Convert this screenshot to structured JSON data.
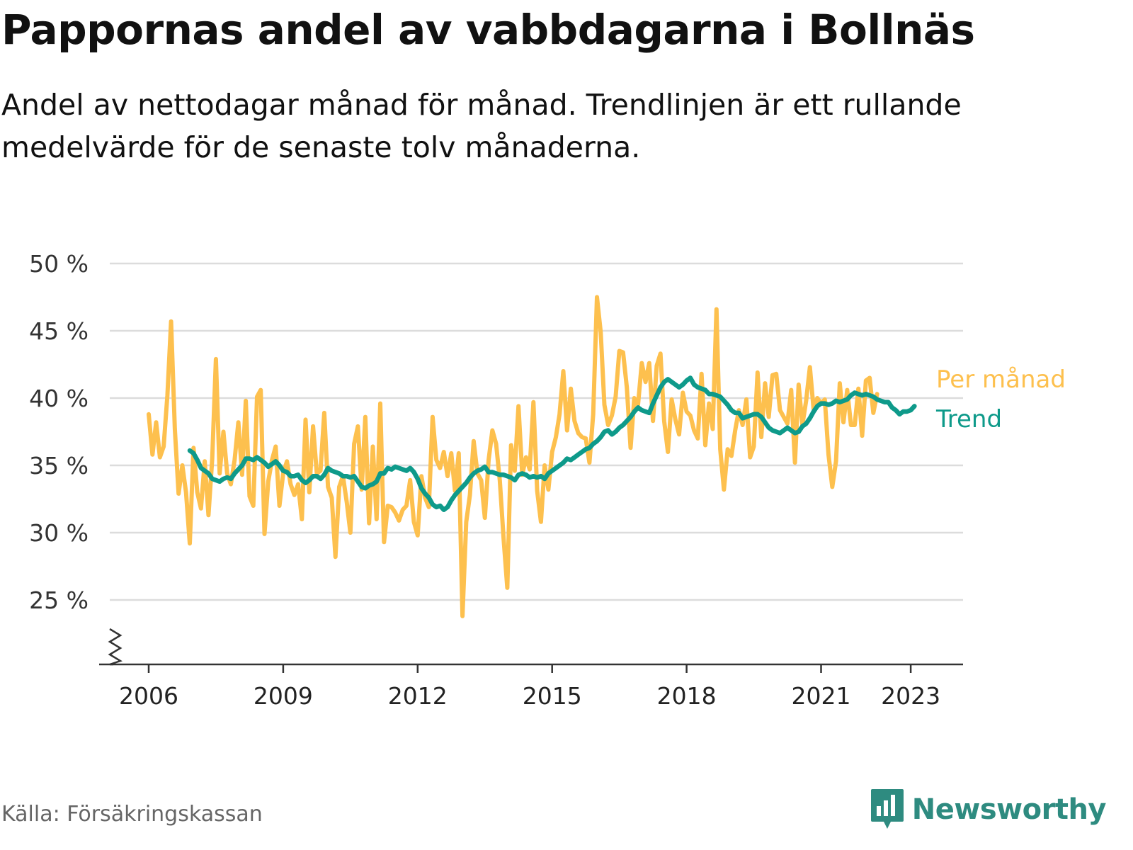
{
  "title": "Pappornas andel av vabbdagarna i Bollnäs",
  "subtitle": "Andel av nettodagar månad för månad. Trendlinjen är ett rullande medelvärde för de senaste tolv månaderna.",
  "source": "Källa: Försäkringskassan",
  "brand": {
    "name": "Newsworthy",
    "icon": "newsworthy-logo-icon",
    "color": "#2e8b80"
  },
  "chart_data": {
    "type": "line",
    "ylim": [
      20,
      50
    ],
    "xlim": [
      2005.1,
      2024.2
    ],
    "y_ticks": [
      {
        "value": 25,
        "label": "25 %"
      },
      {
        "value": 30,
        "label": "30 %"
      },
      {
        "value": 35,
        "label": "35 %"
      },
      {
        "value": 40,
        "label": "40 %"
      },
      {
        "value": 45,
        "label": "45 %"
      },
      {
        "value": 50,
        "label": "50 %"
      }
    ],
    "x_ticks": [
      {
        "value": 2006,
        "label": "2006"
      },
      {
        "value": 2009,
        "label": "2009"
      },
      {
        "value": 2012,
        "label": "2012"
      },
      {
        "value": 2015,
        "label": "2015"
      },
      {
        "value": 2018,
        "label": "2018"
      },
      {
        "value": 2021,
        "label": "2021"
      },
      {
        "value": 2023,
        "label": "2023"
      }
    ],
    "axis_break": true,
    "grid": "horizontal",
    "legend": "direct labels at right end of lines",
    "series": [
      {
        "name": "Per månad",
        "color": "#fdc04e",
        "start": 2006.0,
        "step": 0.0833333,
        "values": [
          38.8,
          35.8,
          38.2,
          35.6,
          36.4,
          40.2,
          45.7,
          37.7,
          32.9,
          35.0,
          33.0,
          29.2,
          36.3,
          33.0,
          31.8,
          35.3,
          31.3,
          35.5,
          42.9,
          34.4,
          37.5,
          34.4,
          33.6,
          35.4,
          38.2,
          34.3,
          39.8,
          32.7,
          32.0,
          40.1,
          40.6,
          29.9,
          33.8,
          35.4,
          36.4,
          32.0,
          34.4,
          35.3,
          33.6,
          32.8,
          33.6,
          31.0,
          38.4,
          33.0,
          37.9,
          34.4,
          34.6,
          38.9,
          33.4,
          32.6,
          28.2,
          33.4,
          34.2,
          32.3,
          30.0,
          36.6,
          37.9,
          33.2,
          38.6,
          30.7,
          36.4,
          31.0,
          39.6,
          29.3,
          32.0,
          31.9,
          31.5,
          30.9,
          31.7,
          32.0,
          33.9,
          30.8,
          29.8,
          34.2,
          32.6,
          31.9,
          38.6,
          35.4,
          34.8,
          36.0,
          34.2,
          35.9,
          33.1,
          35.9,
          23.8,
          30.8,
          32.8,
          36.8,
          34.4,
          33.9,
          31.1,
          35.4,
          37.6,
          36.6,
          33.9,
          29.6,
          25.9,
          36.5,
          34.6,
          39.4,
          34.3,
          35.6,
          34.7,
          39.7,
          33.1,
          30.8,
          35.0,
          33.2,
          36.0,
          37.1,
          38.8,
          42.0,
          37.6,
          40.7,
          38.3,
          37.4,
          37.1,
          37.0,
          35.2,
          38.8,
          47.5,
          44.9,
          39.5,
          38.0,
          38.7,
          40.1,
          43.5,
          43.4,
          40.8,
          36.3,
          40.0,
          39.5,
          42.6,
          41.2,
          42.6,
          38.3,
          42.4,
          43.3,
          38.3,
          36.0,
          39.9,
          38.4,
          37.3,
          40.4,
          39.0,
          38.7,
          37.6,
          37.0,
          41.8,
          36.5,
          39.6,
          37.7,
          46.6,
          36.2,
          33.2,
          36.2,
          35.7,
          37.6,
          39.1,
          38.0,
          39.9,
          35.6,
          36.4,
          41.9,
          37.1,
          41.1,
          38.6,
          41.7,
          41.8,
          39.1,
          38.6,
          38.1,
          40.6,
          35.2,
          41.0,
          38.0,
          39.8,
          42.3,
          39.2,
          40.0,
          39.6,
          39.9,
          35.8,
          33.4,
          35.3,
          41.1,
          38.2,
          40.6,
          38.0,
          38.0,
          40.7,
          37.2,
          41.3,
          41.5,
          38.9,
          40.3
        ]
      },
      {
        "name": "Trend",
        "color": "#0e9a8a",
        "start": 2006.9167,
        "step": 0.0833333,
        "values": [
          36.1,
          35.9,
          35.4,
          34.8,
          34.6,
          34.4,
          34.0,
          33.9,
          33.8,
          34.0,
          34.1,
          34.0,
          34.4,
          34.7,
          35.0,
          35.5,
          35.5,
          35.4,
          35.6,
          35.4,
          35.2,
          34.9,
          35.1,
          35.3,
          35.0,
          34.6,
          34.5,
          34.2,
          34.2,
          34.3,
          33.9,
          33.7,
          33.9,
          34.2,
          34.2,
          34.0,
          34.3,
          34.8,
          34.6,
          34.5,
          34.4,
          34.2,
          34.2,
          34.1,
          34.2,
          33.8,
          33.4,
          33.3,
          33.5,
          33.6,
          33.8,
          34.4,
          34.4,
          34.8,
          34.7,
          34.9,
          34.8,
          34.7,
          34.6,
          34.8,
          34.5,
          34.0,
          33.3,
          32.9,
          32.6,
          32.1,
          31.9,
          32.0,
          31.7,
          31.9,
          32.4,
          32.8,
          33.1,
          33.4,
          33.7,
          34.1,
          34.4,
          34.6,
          34.7,
          34.9,
          34.5,
          34.5,
          34.4,
          34.3,
          34.3,
          34.2,
          34.1,
          33.9,
          34.3,
          34.4,
          34.3,
          34.1,
          34.2,
          34.1,
          34.2,
          34.0,
          34.4,
          34.6,
          34.8,
          35.0,
          35.2,
          35.5,
          35.4,
          35.6,
          35.8,
          36.0,
          36.2,
          36.3,
          36.6,
          36.8,
          37.1,
          37.5,
          37.6,
          37.3,
          37.5,
          37.8,
          38.0,
          38.3,
          38.6,
          39.0,
          39.3,
          39.1,
          39.0,
          38.9,
          39.6,
          40.2,
          40.8,
          41.2,
          41.4,
          41.2,
          41.0,
          40.8,
          41.0,
          41.3,
          41.5,
          41.0,
          40.8,
          40.7,
          40.6,
          40.3,
          40.3,
          40.2,
          40.1,
          39.8,
          39.5,
          39.1,
          38.9,
          38.9,
          38.5,
          38.6,
          38.7,
          38.8,
          38.8,
          38.6,
          38.2,
          37.8,
          37.6,
          37.5,
          37.4,
          37.6,
          37.8,
          37.6,
          37.4,
          37.5,
          37.9,
          38.1,
          38.5,
          39.0,
          39.4,
          39.6,
          39.6,
          39.5,
          39.6,
          39.8,
          39.7,
          39.8,
          39.9,
          40.2,
          40.4,
          40.3,
          40.2,
          40.3,
          40.2,
          40.1,
          39.9,
          39.8,
          39.7,
          39.7,
          39.3,
          39.1,
          38.8,
          39.0,
          39.0,
          39.1,
          39.4
        ]
      }
    ]
  }
}
